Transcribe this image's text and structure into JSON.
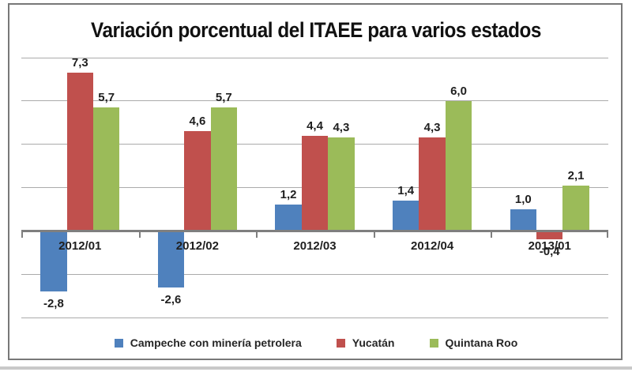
{
  "chart_data": {
    "type": "bar",
    "title": "Variación porcentual del ITAEE para varios estados",
    "categories": [
      "2012/01",
      "2012/02",
      "2012/03",
      "2012/04",
      "2013/01"
    ],
    "series": [
      {
        "name": "Campeche con minería petrolera",
        "color": "#4F81BD",
        "values": [
          -2.8,
          -2.6,
          1.2,
          1.4,
          1.0
        ],
        "labels": [
          "-2,8",
          "-2,6",
          "1,2",
          "1,4",
          "1,0"
        ]
      },
      {
        "name": "Yucatán",
        "color": "#C0504D",
        "values": [
          7.3,
          4.6,
          4.4,
          4.3,
          -0.4
        ],
        "labels": [
          "7,3",
          "4,6",
          "4,4",
          "4,3",
          "-0,4"
        ]
      },
      {
        "name": "Quintana Roo",
        "color": "#9BBB59",
        "values": [
          5.7,
          5.7,
          4.3,
          6.0,
          2.1
        ],
        "labels": [
          "5,7",
          "5,7",
          "4,3",
          "6,0",
          "2,1"
        ]
      }
    ],
    "ylim": [
      -4,
      8
    ],
    "gridline_step": 2,
    "grid": "horizontal",
    "y_axis_labels_visible": false,
    "legend_position": "bottom",
    "decimal_separator": ","
  },
  "colors": {
    "gridline": "#ABABAB",
    "axis": "#7F7F7F",
    "frame_border": "#787878",
    "text": "#1F1F1F",
    "background": "#FFFFFF"
  }
}
